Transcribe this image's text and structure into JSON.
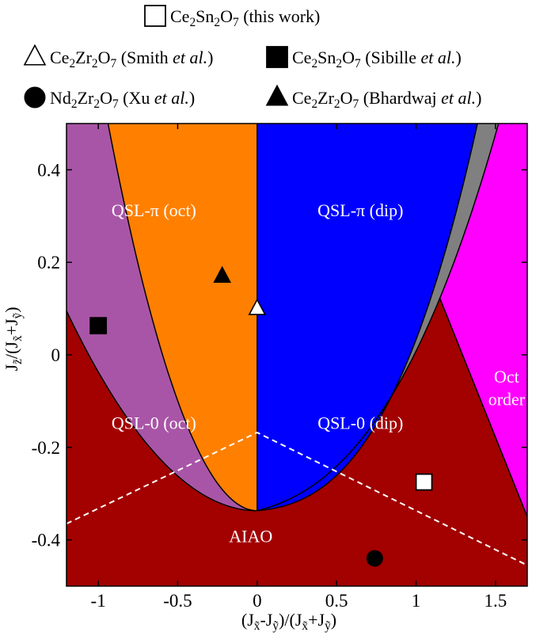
{
  "chart_data": {
    "type": "scatter",
    "title": "",
    "xlim": [
      -1.2,
      1.7
    ],
    "ylim": [
      -0.5,
      0.5
    ],
    "x_ticks": [
      {
        "value": -1,
        "label": "-1"
      },
      {
        "value": -0.5,
        "label": "-0.5"
      },
      {
        "value": 0,
        "label": "0"
      },
      {
        "value": 0.5,
        "label": "0.5"
      },
      {
        "value": 1,
        "label": "1"
      },
      {
        "value": 1.5,
        "label": "1.5"
      }
    ],
    "y_ticks": [
      {
        "value": 0.4,
        "label": "0.4"
      },
      {
        "value": 0.2,
        "label": "0.2"
      },
      {
        "value": 0,
        "label": "0"
      },
      {
        "value": -0.2,
        "label": "-0.2"
      },
      {
        "value": -0.4,
        "label": "-0.4"
      }
    ],
    "xlabel": {
      "parts": [
        {
          "t": "(J"
        },
        {
          "t": "x̃",
          "sub": true
        },
        {
          "t": "-J"
        },
        {
          "t": "ỹ",
          "sub": true
        },
        {
          "t": ")/(J"
        },
        {
          "t": "x̃",
          "sub": true
        },
        {
          "t": "+J"
        },
        {
          "t": "ỹ",
          "sub": true
        },
        {
          "t": ")"
        }
      ]
    },
    "ylabel": {
      "parts": [
        {
          "t": "J"
        },
        {
          "t": "z̃",
          "sub": true
        },
        {
          "t": "/(J"
        },
        {
          "t": "x̃",
          "sub": true
        },
        {
          "t": "+J"
        },
        {
          "t": "ỹ",
          "sub": true
        },
        {
          "t": ")"
        }
      ]
    },
    "regions": [
      {
        "key": "aiao",
        "label": "AIAO",
        "color": "#a30000",
        "label_at": [
          -0.04,
          -0.405
        ]
      },
      {
        "key": "qsl0_oct",
        "label": "QSL-0 (oct)",
        "color": "#a955a7",
        "label_at": [
          -0.65,
          -0.16
        ]
      },
      {
        "key": "qslpi_oct",
        "label": "QSL-π (oct)",
        "color": "#ff8000",
        "label_at": [
          -0.65,
          0.3
        ]
      },
      {
        "key": "qslpi_dip",
        "label": "QSL-π (dip)",
        "color": "#0000ff",
        "label_at": [
          0.65,
          0.3
        ]
      },
      {
        "key": "qsl0_dip",
        "label": "QSL-0 (dip)",
        "color": "#808080",
        "label_at": [
          0.65,
          -0.16
        ]
      },
      {
        "key": "oct_order",
        "label": "Oct order",
        "label_lines": [
          "Oct",
          "order"
        ],
        "color": "#ff00ff",
        "label_at": [
          1.57,
          -0.06
        ]
      }
    ],
    "dashed_line": {
      "color": "#ffffff",
      "points": [
        [
          -1.2,
          -0.365
        ],
        [
          0,
          -0.168
        ],
        [
          1.7,
          -0.455
        ]
      ]
    },
    "series": [
      {
        "name": "Ce2Sn2O7 (this work)",
        "marker": "square-open",
        "x": [
          1.05
        ],
        "y": [
          -0.275
        ],
        "legend_parts": [
          {
            "t": "Ce"
          },
          {
            "t": "2",
            "sub": true
          },
          {
            "t": "Sn"
          },
          {
            "t": "2",
            "sub": true
          },
          {
            "t": "O"
          },
          {
            "t": "7",
            "sub": true
          },
          {
            "t": " (this work)"
          }
        ]
      },
      {
        "name": "Ce2Zr2O7 (Smith et al.)",
        "marker": "triangle-open",
        "x": [
          0.0
        ],
        "y": [
          0.1
        ],
        "legend_parts": [
          {
            "t": "Ce"
          },
          {
            "t": "2",
            "sub": true
          },
          {
            "t": "Zr"
          },
          {
            "t": "2",
            "sub": true
          },
          {
            "t": "O"
          },
          {
            "t": "7",
            "sub": true
          },
          {
            "t": " (Smith "
          },
          {
            "t": "et al.",
            "it": true
          },
          {
            "t": ")"
          }
        ]
      },
      {
        "name": "Ce2Sn2O7 (Sibille et al.)",
        "marker": "square-filled",
        "x": [
          -1.0
        ],
        "y": [
          0.063
        ],
        "legend_parts": [
          {
            "t": "Ce"
          },
          {
            "t": "2",
            "sub": true
          },
          {
            "t": "Sn"
          },
          {
            "t": "2",
            "sub": true
          },
          {
            "t": "O"
          },
          {
            "t": "7",
            "sub": true
          },
          {
            "t": " (Sibille "
          },
          {
            "t": "et al.",
            "it": true
          },
          {
            "t": ")"
          }
        ]
      },
      {
        "name": "Nd2Zr2O7 (Xu et al.)",
        "marker": "circle-filled",
        "x": [
          0.74
        ],
        "y": [
          -0.44
        ],
        "legend_parts": [
          {
            "t": "Nd"
          },
          {
            "t": "2",
            "sub": true
          },
          {
            "t": "Zr"
          },
          {
            "t": "2",
            "sub": true
          },
          {
            "t": "O"
          },
          {
            "t": "7",
            "sub": true
          },
          {
            "t": " (Xu "
          },
          {
            "t": "et al.",
            "it": true
          },
          {
            "t": ")"
          }
        ]
      },
      {
        "name": "Ce2Zr2O7 (Bhardwaj et al.)",
        "marker": "triangle-filled",
        "x": [
          -0.22
        ],
        "y": [
          0.17
        ],
        "legend_parts": [
          {
            "t": "Ce"
          },
          {
            "t": "2",
            "sub": true
          },
          {
            "t": "Zr"
          },
          {
            "t": "2",
            "sub": true
          },
          {
            "t": "O"
          },
          {
            "t": "7",
            "sub": true
          },
          {
            "t": " (Bhardwaj "
          },
          {
            "t": "et al.",
            "it": true
          },
          {
            "t": ")"
          }
        ]
      }
    ],
    "legend_placement": "top"
  }
}
